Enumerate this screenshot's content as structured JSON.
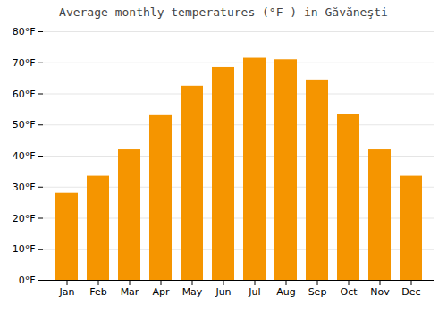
{
  "chart_data": {
    "type": "bar",
    "title": "Average monthly temperatures (°F ) in Găvăneşti",
    "categories": [
      "Jan",
      "Feb",
      "Mar",
      "Apr",
      "May",
      "Jun",
      "Jul",
      "Aug",
      "Sep",
      "Oct",
      "Nov",
      "Dec"
    ],
    "values": [
      28.0,
      33.5,
      42.0,
      53.0,
      62.5,
      68.5,
      71.5,
      71.0,
      64.5,
      53.5,
      42.0,
      33.5
    ],
    "color": "#F59500",
    "ylim": [
      0,
      80
    ],
    "yticks": [
      {
        "value": 0,
        "label": "0°F"
      },
      {
        "value": 10,
        "label": "10°F"
      },
      {
        "value": 20,
        "label": "20°F"
      },
      {
        "value": 30,
        "label": "30°F"
      },
      {
        "value": 40,
        "label": "40°F"
      },
      {
        "value": 50,
        "label": "50°F"
      },
      {
        "value": 60,
        "label": "60°F"
      },
      {
        "value": 70,
        "label": "70°F"
      },
      {
        "value": 80,
        "label": "80°F"
      }
    ],
    "grid": true
  }
}
